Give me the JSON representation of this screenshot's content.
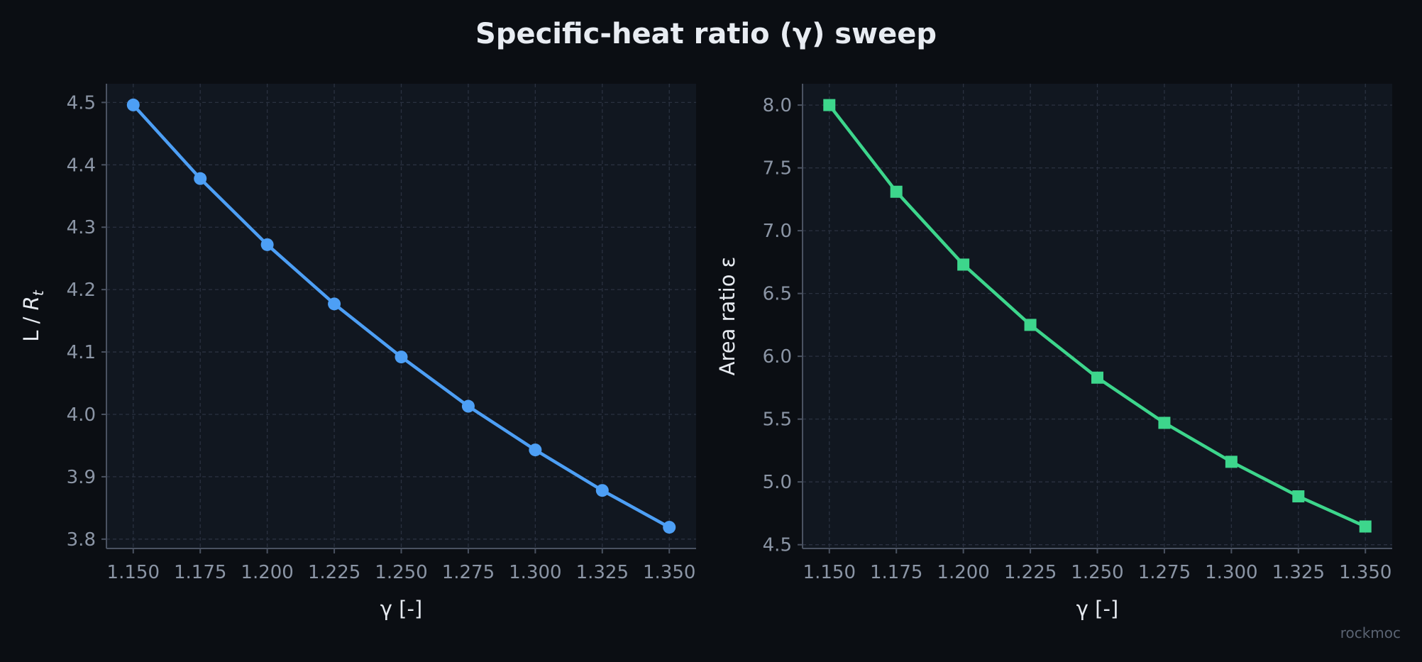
{
  "figure": {
    "title": "Specific-heat ratio (γ) sweep",
    "watermark": "rockmoc",
    "background": "#0b0e13",
    "panel_background": "#111720",
    "grid_color": "#2a3140",
    "axis_color": "#4a5261"
  },
  "chart_data": [
    {
      "type": "line",
      "xlabel": "γ [-]",
      "ylabel_main": "L / ",
      "ylabel_sym": "R",
      "ylabel_sub": "t",
      "x": [
        1.15,
        1.175,
        1.2,
        1.225,
        1.25,
        1.275,
        1.3,
        1.325,
        1.35
      ],
      "series": [
        {
          "values": [
            4.496,
            4.378,
            4.272,
            4.177,
            4.092,
            4.013,
            3.943,
            3.878,
            3.819
          ],
          "color": "#4d9ff5",
          "marker": "circle"
        }
      ],
      "xlim": [
        1.14,
        1.36
      ],
      "ylim": [
        3.785,
        4.53
      ],
      "xticks": [
        1.15,
        1.175,
        1.2,
        1.225,
        1.25,
        1.275,
        1.3,
        1.325,
        1.35
      ],
      "xtick_labels": [
        "1.150",
        "1.175",
        "1.200",
        "1.225",
        "1.250",
        "1.275",
        "1.300",
        "1.325",
        "1.350"
      ],
      "yticks": [
        3.8,
        3.9,
        4.0,
        4.1,
        4.2,
        4.3,
        4.4,
        4.5
      ],
      "ytick_labels": [
        "3.8",
        "3.9",
        "4.0",
        "4.1",
        "4.2",
        "4.3",
        "4.4",
        "4.5"
      ],
      "grid": true
    },
    {
      "type": "line",
      "xlabel": "γ [-]",
      "ylabel_main": "Area ratio ε",
      "ylabel_sym": "",
      "ylabel_sub": "",
      "x": [
        1.15,
        1.175,
        1.2,
        1.225,
        1.25,
        1.275,
        1.3,
        1.325,
        1.35
      ],
      "series": [
        {
          "values": [
            8.0,
            7.31,
            6.73,
            6.25,
            5.83,
            5.47,
            5.16,
            4.885,
            4.645
          ],
          "color": "#3dd68c",
          "marker": "square"
        }
      ],
      "xlim": [
        1.14,
        1.36
      ],
      "ylim": [
        4.47,
        8.17
      ],
      "xticks": [
        1.15,
        1.175,
        1.2,
        1.225,
        1.25,
        1.275,
        1.3,
        1.325,
        1.35
      ],
      "xtick_labels": [
        "1.150",
        "1.175",
        "1.200",
        "1.225",
        "1.250",
        "1.275",
        "1.300",
        "1.325",
        "1.350"
      ],
      "yticks": [
        4.5,
        5.0,
        5.5,
        6.0,
        6.5,
        7.0,
        7.5,
        8.0
      ],
      "ytick_labels": [
        "4.5",
        "5.0",
        "5.5",
        "6.0",
        "6.5",
        "7.0",
        "7.5",
        "8.0"
      ],
      "grid": true
    }
  ]
}
